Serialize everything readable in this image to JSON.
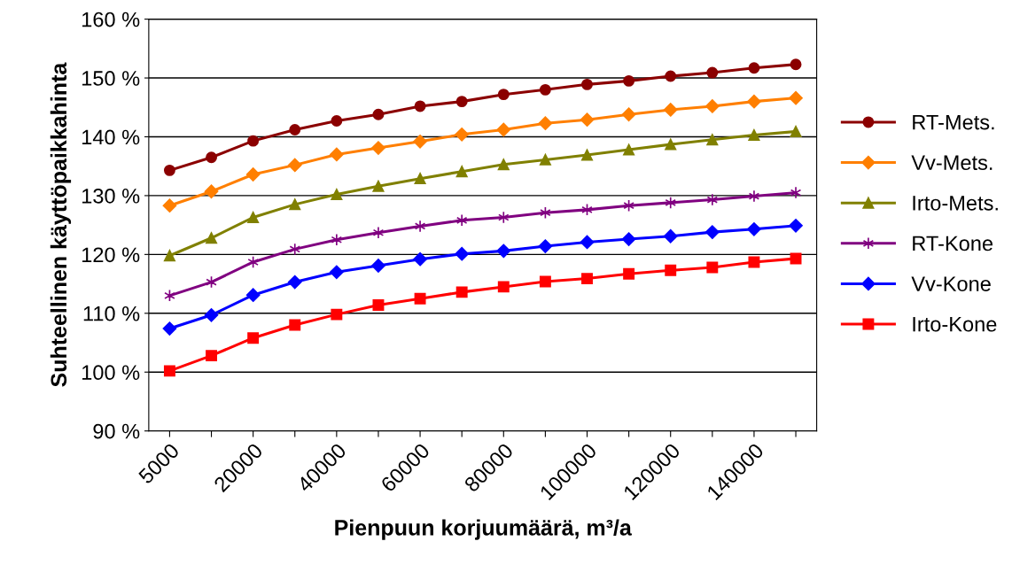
{
  "chart_data": {
    "type": "line",
    "xlabel": "Pienpuun korjuumäärä, m³/a",
    "ylabel": "Suhteellinen käyttöpaikkahinta",
    "categories": [
      "5000",
      null,
      "20000",
      null,
      "40000",
      null,
      "60000",
      null,
      "80000",
      null,
      "100000",
      null,
      "120000",
      null,
      "140000",
      null
    ],
    "series": [
      {
        "name": "RT-Mets.",
        "color": "#8b0000",
        "marker": "circle",
        "values": [
          134.3,
          136.5,
          139.3,
          141.2,
          142.7,
          143.8,
          145.2,
          146.0,
          147.2,
          148.0,
          148.9,
          149.5,
          150.3,
          150.9,
          151.7,
          152.3
        ]
      },
      {
        "name": "Vv-Mets.",
        "color": "#ff7f00",
        "marker": "diamond",
        "values": [
          128.3,
          130.7,
          133.6,
          135.2,
          137.0,
          138.1,
          139.2,
          140.4,
          141.2,
          142.3,
          142.9,
          143.8,
          144.6,
          145.2,
          146.0,
          146.6
        ]
      },
      {
        "name": "Irto-Mets.",
        "color": "#808000",
        "marker": "triangle",
        "values": [
          119.8,
          122.8,
          126.3,
          128.5,
          130.2,
          131.6,
          132.9,
          134.1,
          135.3,
          136.1,
          136.9,
          137.8,
          138.7,
          139.5,
          140.3,
          140.9
        ]
      },
      {
        "name": "RT-Kone",
        "color": "#800080",
        "marker": "cross",
        "values": [
          113.0,
          115.3,
          118.7,
          120.9,
          122.5,
          123.7,
          124.8,
          125.8,
          126.3,
          127.1,
          127.6,
          128.3,
          128.8,
          129.3,
          129.9,
          130.5
        ]
      },
      {
        "name": "Vv-Kone",
        "color": "#0000ff",
        "marker": "diamond",
        "values": [
          107.4,
          109.7,
          113.1,
          115.3,
          117.0,
          118.1,
          119.2,
          120.1,
          120.6,
          121.4,
          122.1,
          122.6,
          123.1,
          123.8,
          124.3,
          124.9
        ]
      },
      {
        "name": "Irto-Kone",
        "color": "#ff0000",
        "marker": "square",
        "values": [
          100.2,
          102.8,
          105.8,
          108.0,
          109.8,
          111.4,
          112.5,
          113.6,
          114.5,
          115.4,
          115.9,
          116.7,
          117.3,
          117.8,
          118.7,
          119.3
        ]
      }
    ],
    "ylim": [
      90,
      160
    ],
    "yticks": [
      {
        "value": 90,
        "label": "90 %"
      },
      {
        "value": 100,
        "label": "100 %"
      },
      {
        "value": 110,
        "label": "110 %"
      },
      {
        "value": 120,
        "label": "120 %"
      },
      {
        "value": 130,
        "label": "130 %"
      },
      {
        "value": 140,
        "label": "140 %"
      },
      {
        "value": 150,
        "label": "150 %"
      },
      {
        "value": 160,
        "label": "160 %"
      }
    ],
    "grid": "y",
    "legend": "right",
    "line_style": "solid"
  }
}
